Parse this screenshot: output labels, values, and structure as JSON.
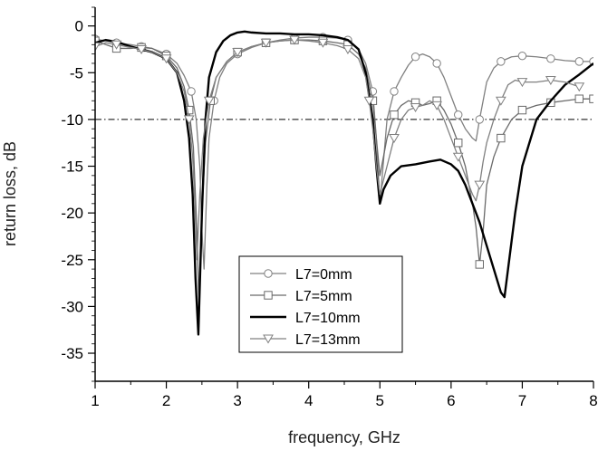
{
  "chart_data": {
    "type": "line",
    "xlabel": "frequency, GHz",
    "ylabel": "return loss, dB",
    "xlim": [
      1,
      8
    ],
    "ylim": [
      -38,
      2
    ],
    "xticks": [
      1,
      2,
      3,
      4,
      5,
      6,
      7,
      8
    ],
    "xtick_labels": [
      "1",
      "2",
      "3",
      "4",
      "5",
      "6",
      "7",
      "8"
    ],
    "yticks": [
      0,
      -5,
      -10,
      -15,
      -20,
      -25,
      -30,
      -35
    ],
    "ytick_labels": [
      "0",
      "-5",
      "-10",
      "-15",
      "-20",
      "-25",
      "-30",
      "-35"
    ],
    "reference_line": {
      "y": -10,
      "style": "dash-dot"
    },
    "grid": false,
    "legend_position": "lower-center",
    "series": [
      {
        "name": "L7=0mm",
        "marker": "circle",
        "color": "#808080",
        "x": [
          1.0,
          1.15,
          1.3,
          1.5,
          1.65,
          1.8,
          2.0,
          2.15,
          2.25,
          2.35,
          2.42,
          2.47,
          2.5,
          2.53,
          2.57,
          2.6,
          2.67,
          2.75,
          2.85,
          3.0,
          3.2,
          3.4,
          3.6,
          3.8,
          4.0,
          4.2,
          4.4,
          4.55,
          4.7,
          4.8,
          4.9,
          4.95,
          5.0,
          5.1,
          5.2,
          5.3,
          5.4,
          5.5,
          5.6,
          5.7,
          5.8,
          5.9,
          6.0,
          6.1,
          6.2,
          6.3,
          6.35,
          6.4,
          6.5,
          6.6,
          6.7,
          6.85,
          7.0,
          7.2,
          7.4,
          7.6,
          7.8,
          8.0
        ],
        "y": [
          -1.4,
          -1.6,
          -1.8,
          -2.0,
          -2.2,
          -2.4,
          -3.0,
          -4.0,
          -5.3,
          -7.0,
          -10.0,
          -15.0,
          -22.0,
          -26.0,
          -17.0,
          -12.0,
          -8.0,
          -5.5,
          -4.0,
          -3.0,
          -2.3,
          -1.8,
          -1.5,
          -1.3,
          -1.2,
          -1.2,
          -1.3,
          -1.5,
          -2.5,
          -4.0,
          -7.0,
          -12.0,
          -19.0,
          -10.0,
          -7.0,
          -5.5,
          -4.2,
          -3.3,
          -3.0,
          -3.3,
          -4.0,
          -5.5,
          -7.5,
          -9.5,
          -11.0,
          -12.0,
          -12.3,
          -10.0,
          -6.0,
          -4.5,
          -3.8,
          -3.3,
          -3.2,
          -3.3,
          -3.5,
          -3.7,
          -3.8,
          -3.8
        ]
      },
      {
        "name": "L7=5mm",
        "marker": "square",
        "color": "#6a6a6a",
        "x": [
          1.0,
          1.15,
          1.3,
          1.5,
          1.65,
          1.8,
          2.0,
          2.15,
          2.25,
          2.32,
          2.38,
          2.43,
          2.46,
          2.5,
          2.55,
          2.62,
          2.7,
          2.85,
          3.0,
          3.2,
          3.4,
          3.6,
          3.8,
          4.0,
          4.2,
          4.4,
          4.55,
          4.7,
          4.8,
          4.9,
          4.95,
          5.0,
          5.1,
          5.2,
          5.3,
          5.4,
          5.5,
          5.6,
          5.7,
          5.8,
          5.9,
          6.0,
          6.1,
          6.2,
          6.3,
          6.35,
          6.4,
          6.45,
          6.5,
          6.6,
          6.7,
          6.85,
          7.0,
          7.2,
          7.4,
          7.6,
          7.8,
          8.0
        ],
        "y": [
          -1.6,
          -2.0,
          -2.4,
          -2.4,
          -2.3,
          -2.4,
          -3.2,
          -4.5,
          -6.5,
          -9.0,
          -13.0,
          -22.0,
          -30.0,
          -20.0,
          -12.5,
          -8.0,
          -5.5,
          -3.8,
          -2.8,
          -2.2,
          -1.8,
          -1.6,
          -1.5,
          -1.5,
          -1.6,
          -1.8,
          -2.0,
          -3.0,
          -4.5,
          -8.0,
          -12.0,
          -16.0,
          -12.0,
          -9.5,
          -8.5,
          -8.0,
          -8.2,
          -8.5,
          -8.3,
          -8.0,
          -9.0,
          -10.5,
          -12.5,
          -15.0,
          -19.0,
          -21.5,
          -25.5,
          -22.0,
          -17.0,
          -14.0,
          -12.0,
          -10.0,
          -9.0,
          -8.5,
          -8.2,
          -8.0,
          -7.8,
          -7.8
        ]
      },
      {
        "name": "L7=10mm",
        "marker": "none",
        "color": "#000000",
        "x": [
          1.0,
          1.15,
          1.3,
          1.5,
          1.65,
          1.8,
          2.0,
          2.15,
          2.25,
          2.32,
          2.37,
          2.41,
          2.45,
          2.5,
          2.55,
          2.6,
          2.7,
          2.8,
          2.9,
          3.0,
          3.1,
          3.2,
          3.4,
          3.6,
          3.8,
          4.0,
          4.2,
          4.4,
          4.55,
          4.7,
          4.8,
          4.9,
          4.95,
          5.0,
          5.05,
          5.15,
          5.3,
          5.5,
          5.7,
          5.85,
          6.0,
          6.1,
          6.2,
          6.3,
          6.4,
          6.5,
          6.6,
          6.7,
          6.75,
          6.8,
          6.9,
          7.0,
          7.2,
          7.4,
          7.6,
          7.8,
          8.0
        ],
        "y": [
          -1.8,
          -1.5,
          -1.7,
          -2.2,
          -2.5,
          -2.8,
          -3.5,
          -5.0,
          -8.0,
          -12.0,
          -18.0,
          -27.0,
          -33.0,
          -20.0,
          -10.0,
          -5.5,
          -2.8,
          -1.6,
          -1.0,
          -0.7,
          -0.6,
          -0.7,
          -0.8,
          -0.8,
          -0.9,
          -0.9,
          -1.0,
          -1.2,
          -1.5,
          -2.5,
          -5.0,
          -10.0,
          -15.0,
          -19.0,
          -17.5,
          -16.0,
          -15.0,
          -14.8,
          -14.5,
          -14.3,
          -14.8,
          -15.5,
          -17.0,
          -19.0,
          -21.0,
          -23.5,
          -26.0,
          -28.5,
          -29.0,
          -26.0,
          -20.0,
          -15.0,
          -10.0,
          -8.0,
          -6.3,
          -5.2,
          -4.0
        ]
      },
      {
        "name": "L7=13mm",
        "marker": "triangle-down",
        "color": "#808080",
        "x": [
          1.0,
          1.15,
          1.3,
          1.5,
          1.65,
          1.8,
          2.0,
          2.15,
          2.25,
          2.32,
          2.37,
          2.4,
          2.43,
          2.47,
          2.52,
          2.6,
          2.7,
          2.85,
          3.0,
          3.2,
          3.4,
          3.6,
          3.8,
          4.0,
          4.2,
          4.4,
          4.55,
          4.7,
          4.8,
          4.85,
          4.9,
          4.95,
          5.0,
          5.1,
          5.2,
          5.3,
          5.4,
          5.5,
          5.6,
          5.7,
          5.8,
          5.9,
          6.0,
          6.1,
          6.2,
          6.3,
          6.35,
          6.4,
          6.45,
          6.5,
          6.6,
          6.7,
          6.8,
          6.9,
          7.0,
          7.2,
          7.4,
          7.6,
          7.8
        ],
        "y": [
          -2.2,
          -1.8,
          -2.0,
          -2.3,
          -2.5,
          -2.8,
          -3.5,
          -5.0,
          -7.0,
          -10.0,
          -14.0,
          -19.0,
          -25.0,
          -18.0,
          -12.0,
          -8.0,
          -5.5,
          -3.8,
          -2.8,
          -2.2,
          -1.8,
          -1.6,
          -1.5,
          -1.6,
          -1.8,
          -2.1,
          -2.5,
          -3.5,
          -5.5,
          -8.0,
          -11.0,
          -15.0,
          -18.0,
          -15.0,
          -12.0,
          -10.0,
          -9.0,
          -8.7,
          -8.5,
          -8.0,
          -8.5,
          -10.0,
          -12.0,
          -14.0,
          -16.0,
          -18.0,
          -18.7,
          -17.0,
          -14.5,
          -12.5,
          -10.0,
          -8.0,
          -6.3,
          -5.8,
          -6.0,
          -6.0,
          -5.8,
          -6.0,
          -6.5
        ]
      }
    ]
  }
}
